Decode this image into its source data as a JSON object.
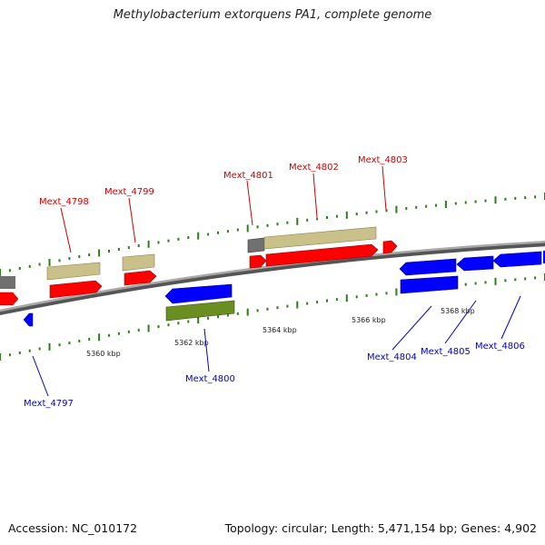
{
  "title": "Methylobacterium extorquens PA1, complete genome",
  "footer": {
    "accession": "Accession: NC_010172",
    "stats": "Topology: circular; Length: 5,471,154 bp; Genes: 4,902"
  },
  "scale_labels": [
    "5360 kbp",
    "5362 kbp",
    "5364 kbp",
    "5366 kbp",
    "5368 kbp"
  ],
  "genes": [
    {
      "name": "Mext_4797",
      "color": "#0000cc"
    },
    {
      "name": "Mext_4798",
      "color": "#cc0000"
    },
    {
      "name": "Mext_4799",
      "color": "#cc0000"
    },
    {
      "name": "Mext_4800",
      "color": "#0000cc"
    },
    {
      "name": "Mext_4801",
      "color": "#cc0000"
    },
    {
      "name": "Mext_4802",
      "color": "#cc0000"
    },
    {
      "name": "Mext_4803",
      "color": "#cc0000"
    },
    {
      "name": "Mext_4804",
      "color": "#0000cc"
    },
    {
      "name": "Mext_4805",
      "color": "#0000cc"
    },
    {
      "name": "Mext_4806",
      "color": "#0000cc"
    }
  ],
  "colors": {
    "forward_cds": "#ff0000",
    "reverse_cds": "#0000ff",
    "forward_feature": "#c9c08a",
    "reverse_feature": "#6b8e23",
    "gray_feature": "#707070",
    "backbone": "#808080",
    "ticks": "#2e7d1a"
  }
}
